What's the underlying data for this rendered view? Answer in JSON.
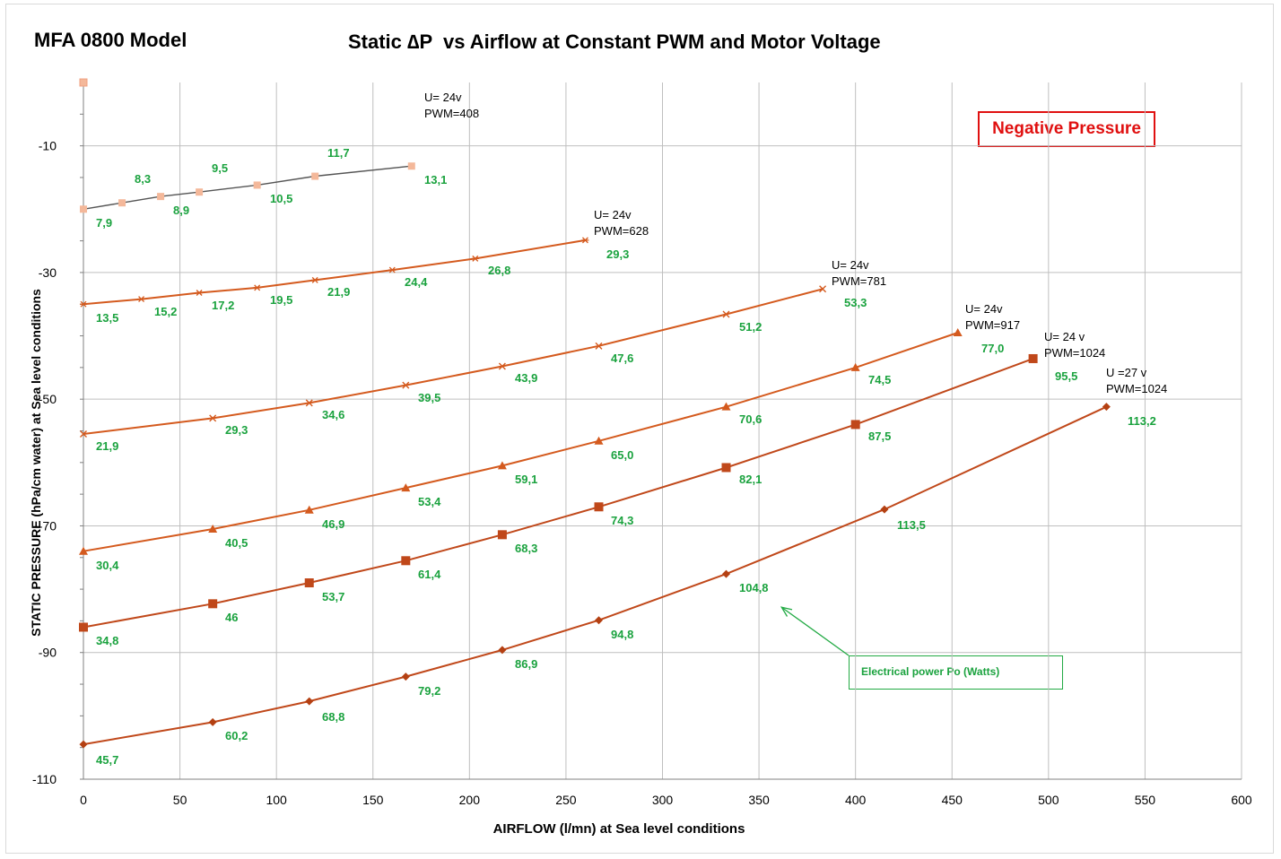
{
  "colors": {
    "line": "#d45a1e",
    "line_dark": "#c0481a",
    "first_line": "#555555",
    "first_marker": "#f4b89a",
    "label_green": "#1aa23e",
    "grid": "#bfbfbf",
    "box_red": "#e01010"
  },
  "chart_data": {
    "type": "line",
    "model_title": "MFA 0800 Model",
    "title": "Static ∆P  vs Airflow at Constant PWM and Motor Voltage",
    "xlabel": "AIRFLOW (l/mn) at Sea level conditions",
    "ylabel": "STATIC PRESSURE (hPa/cm water) at Sea level conditions",
    "xlim": [
      0,
      600
    ],
    "ylim": [
      -110,
      0
    ],
    "xticks": [
      0,
      50,
      100,
      150,
      200,
      250,
      300,
      350,
      400,
      450,
      500,
      550,
      600
    ],
    "yticks": [
      -10,
      -30,
      -50,
      -70,
      -90,
      -110
    ],
    "grid": true,
    "box_label": "Negative Pressure",
    "annotation": "Electrical power Po (Watts)",
    "annotation_target": [
      358,
      -82
    ],
    "stray_marker": [
      0,
      0
    ],
    "series": [
      {
        "name": "U= 24v PWM=408",
        "label_lines": [
          "U= 24v",
          "PWM=408"
        ],
        "marker": "square-light",
        "points": [
          [
            0,
            -20
          ],
          [
            20,
            -19
          ],
          [
            40,
            -18
          ],
          [
            60,
            -17.3
          ],
          [
            90,
            -16.2
          ],
          [
            120,
            -14.8
          ],
          [
            170,
            -13.2
          ]
        ],
        "labels": [
          "7,9",
          "8,3",
          "8,9",
          "9,5",
          "10,5",
          "11,7",
          "13,1"
        ]
      },
      {
        "name": "U= 24v PWM=628",
        "label_lines": [
          "U= 24v",
          "PWM=628"
        ],
        "marker": "star",
        "points": [
          [
            0,
            -35
          ],
          [
            30,
            -34.2
          ],
          [
            60,
            -33.2
          ],
          [
            90,
            -32.4
          ],
          [
            120,
            -31.2
          ],
          [
            160,
            -29.6
          ],
          [
            203,
            -27.8
          ],
          [
            260,
            -24.9
          ]
        ],
        "labels": [
          "13,5",
          "15,2",
          "17,2",
          "19,5",
          "21,9",
          "24,4",
          "26,8",
          "29,3"
        ]
      },
      {
        "name": "U= 24v PWM=781",
        "label_lines": [
          "U= 24v",
          "PWM=781"
        ],
        "marker": "x",
        "points": [
          [
            0,
            -55.5
          ],
          [
            67,
            -53
          ],
          [
            117,
            -50.6
          ],
          [
            167,
            -47.8
          ],
          [
            217,
            -44.8
          ],
          [
            267,
            -41.6
          ],
          [
            333,
            -36.6
          ],
          [
            383,
            -32.6
          ]
        ],
        "labels": [
          "21,9",
          "29,3",
          "34,6",
          "39,5",
          "43,9",
          "47,6",
          "51,2",
          "53,3"
        ]
      },
      {
        "name": "U= 24v PWM=917",
        "label_lines": [
          "U= 24v",
          "PWM=917"
        ],
        "marker": "triangle",
        "points": [
          [
            0,
            -74
          ],
          [
            67,
            -70.5
          ],
          [
            117,
            -67.5
          ],
          [
            167,
            -64
          ],
          [
            217,
            -60.5
          ],
          [
            267,
            -56.6
          ],
          [
            333,
            -51.2
          ],
          [
            400,
            -45
          ],
          [
            453,
            -39.5
          ]
        ],
        "labels": [
          "30,4",
          "40,5",
          "46,9",
          "53,4",
          "59,1",
          "65,0",
          "70,6",
          "74,5",
          "77,0"
        ]
      },
      {
        "name": "U= 24 v PWM=1024",
        "label_lines": [
          "U= 24 v",
          "PWM=1024"
        ],
        "marker": "square",
        "points": [
          [
            0,
            -86
          ],
          [
            67,
            -82.3
          ],
          [
            117,
            -79
          ],
          [
            167,
            -75.5
          ],
          [
            217,
            -71.4
          ],
          [
            267,
            -67
          ],
          [
            333,
            -60.8
          ],
          [
            400,
            -54
          ],
          [
            492,
            -43.6
          ]
        ],
        "labels": [
          "34,8",
          "46",
          "53,7",
          "61,4",
          "68,3",
          "74,3",
          "82,1",
          "87,5",
          "95,5"
        ]
      },
      {
        "name": "U =27 v PWM=1024",
        "label_lines": [
          "U =27 v",
          "PWM=1024"
        ],
        "marker": "diamond",
        "points": [
          [
            0,
            -104.5
          ],
          [
            67,
            -101
          ],
          [
            117,
            -97.7
          ],
          [
            167,
            -93.8
          ],
          [
            217,
            -89.6
          ],
          [
            267,
            -84.9
          ],
          [
            333,
            -77.6
          ],
          [
            415,
            -67.4
          ],
          [
            530,
            -51.2
          ]
        ],
        "labels": [
          "45,7",
          "60,2",
          "68,8",
          "79,2",
          "86,9",
          "94,8",
          "104,8",
          "113,5",
          "113,2"
        ]
      }
    ]
  }
}
